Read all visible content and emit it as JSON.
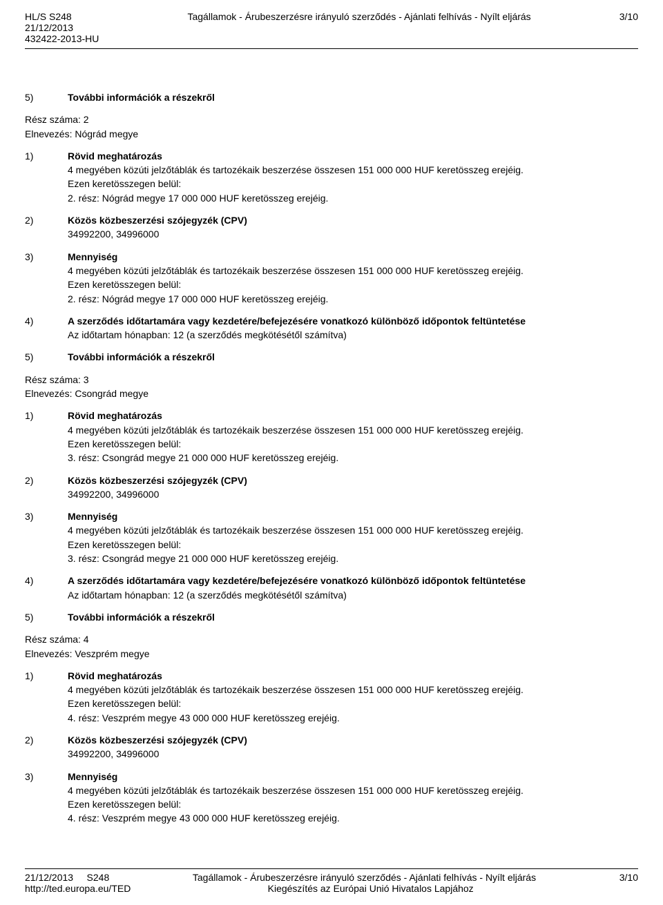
{
  "header": {
    "code_line1": "HL/S S248",
    "date": "21/12/2013",
    "code_line3": "432422-2013-HU",
    "center": "Tagállamok - Árubeszerzésre irányuló szerződés - Ajánlati felhívás - Nyílt eljárás",
    "page": "3/10"
  },
  "intro_item": {
    "num": "5)",
    "title": "További információk a részekről"
  },
  "parts": [
    {
      "part_num_line": "Rész száma: 2",
      "part_name_line": "Elnevezés: Nógrád megye",
      "items": [
        {
          "num": "1)",
          "title": "Rövid meghatározás",
          "lines": [
            "4 megyében közúti jelzőtáblák és tartozékaik beszerzése összesen 151 000 000 HUF keretösszeg erejéig.",
            "Ezen keretösszegen belül:",
            "2. rész: Nógrád megye 17 000 000 HUF keretösszeg erejéig."
          ]
        },
        {
          "num": "2)",
          "title": "Közös közbeszerzési szójegyzék (CPV)",
          "lines": [
            "34992200, 34996000"
          ]
        },
        {
          "num": "3)",
          "title": "Mennyiség",
          "lines": [
            "4 megyében közúti jelzőtáblák és tartozékaik beszerzése összesen 151 000 000 HUF keretösszeg erejéig.",
            "Ezen keretösszegen belül:",
            "2. rész: Nógrád megye 17 000 000 HUF keretösszeg erejéig."
          ]
        },
        {
          "num": "4)",
          "title": "A szerződés időtartamára vagy kezdetére/befejezésére vonatkozó különböző időpontok feltüntetése",
          "lines": [
            "Az időtartam hónapban: 12 (a szerződés megkötésétől számítva)"
          ]
        },
        {
          "num": "5)",
          "title": "További információk a részekről",
          "lines": []
        }
      ]
    },
    {
      "part_num_line": "Rész száma: 3",
      "part_name_line": "Elnevezés: Csongrád megye",
      "items": [
        {
          "num": "1)",
          "title": "Rövid meghatározás",
          "lines": [
            "4 megyében közúti jelzőtáblák és tartozékaik beszerzése összesen 151 000 000 HUF keretösszeg erejéig.",
            "Ezen keretösszegen belül:",
            "3. rész: Csongrád megye 21 000 000 HUF keretösszeg erejéig."
          ]
        },
        {
          "num": "2)",
          "title": "Közös közbeszerzési szójegyzék (CPV)",
          "lines": [
            "34992200, 34996000"
          ]
        },
        {
          "num": "3)",
          "title": "Mennyiség",
          "lines": [
            "4 megyében közúti jelzőtáblák és tartozékaik beszerzése összesen 151 000 000 HUF keretösszeg erejéig.",
            "Ezen keretösszegen belül:",
            "3. rész: Csongrád megye 21 000 000 HUF keretösszeg erejéig."
          ]
        },
        {
          "num": "4)",
          "title": "A szerződés időtartamára vagy kezdetére/befejezésére vonatkozó különböző időpontok feltüntetése",
          "lines": [
            "Az időtartam hónapban: 12 (a szerződés megkötésétől számítva)"
          ]
        },
        {
          "num": "5)",
          "title": "További információk a részekről",
          "lines": []
        }
      ]
    },
    {
      "part_num_line": "Rész száma: 4",
      "part_name_line": "Elnevezés: Veszprém megye",
      "items": [
        {
          "num": "1)",
          "title": "Rövid meghatározás",
          "lines": [
            "4 megyében közúti jelzőtáblák és tartozékaik beszerzése összesen 151 000 000 HUF keretösszeg erejéig.",
            "Ezen keretösszegen belül:",
            "4. rész: Veszprém megye 43 000 000 HUF keretösszeg erejéig."
          ]
        },
        {
          "num": "2)",
          "title": "Közös közbeszerzési szójegyzék (CPV)",
          "lines": [
            "34992200, 34996000"
          ]
        },
        {
          "num": "3)",
          "title": "Mennyiség",
          "lines": [
            "4 megyében közúti jelzőtáblák és tartozékaik beszerzése összesen 151 000 000 HUF keretösszeg erejéig.",
            "Ezen keretösszegen belül:",
            "4. rész: Veszprém megye 43 000 000 HUF keretösszeg erejéig."
          ]
        }
      ]
    }
  ],
  "footer": {
    "date": "21/12/2013",
    "issue": "S248",
    "url": "http://ted.europa.eu/TED",
    "center1": "Tagállamok - Árubeszerzésre irányuló szerződés - Ajánlati felhívás - Nyílt eljárás",
    "center2": "Kiegészítés az Európai Unió Hivatalos Lapjához",
    "page": "3/10"
  }
}
